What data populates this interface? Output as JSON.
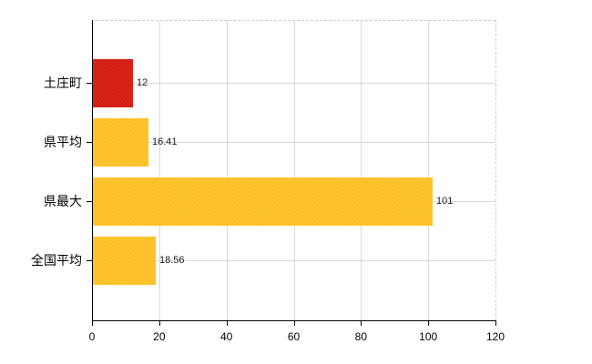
{
  "chart_data": {
    "type": "bar",
    "orientation": "horizontal",
    "title": "",
    "xlabel": "",
    "ylabel": "",
    "categories": [
      "土庄町",
      "県平均",
      "県最大",
      "全国平均"
    ],
    "values": [
      12,
      16.41,
      101,
      18.56
    ],
    "value_labels": [
      "12",
      "16.41",
      "101",
      "18.56"
    ],
    "bar_colors": [
      {
        "base": "#e02318",
        "dot": "#8f1410"
      },
      {
        "base": "#ffc82a",
        "dot": "#ef9e2e"
      },
      {
        "base": "#ffc82a",
        "dot": "#ef9e2e"
      },
      {
        "base": "#ffc82a",
        "dot": "#ef9e2e"
      }
    ],
    "xlim": [
      0,
      120
    ],
    "xticks": [
      0,
      20,
      40,
      60,
      80,
      100,
      120
    ],
    "grid": true,
    "legend": false,
    "colors": {
      "background": "#ffffff",
      "axis": "#000000",
      "grid": "#d9d9d9",
      "plot_border_dashed": "#cccccc",
      "text": "#000000",
      "value_text": "#1a1a1a"
    }
  }
}
